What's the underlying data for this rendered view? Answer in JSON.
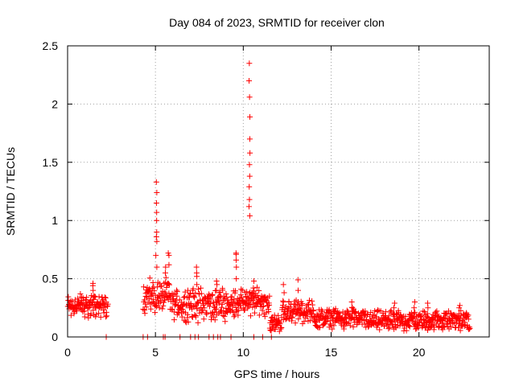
{
  "chart_data": {
    "type": "scatter",
    "title": "Day 084 of 2023, SRMTID for receiver clon",
    "xlabel": "GPS time / hours",
    "ylabel": "SRMTID / TECUs",
    "xlim": [
      0,
      24
    ],
    "ylim": [
      0,
      2.5
    ],
    "xticks": [
      0,
      5,
      10,
      15,
      20
    ],
    "xtick_labels": [
      "0",
      "5",
      "10",
      "15",
      "20"
    ],
    "yticks": [
      0,
      0.5,
      1,
      1.5,
      2,
      2.5
    ],
    "ytick_labels": [
      "0",
      "0.5",
      "1",
      "1.5",
      "2",
      "2.5"
    ],
    "grid": true,
    "marker": "+",
    "marker_color": "#ff0000",
    "series": [
      {
        "name": "SRMTID",
        "segments": [
          {
            "x_start": 0.0,
            "x_end": 2.3,
            "y_base": 0.27,
            "y_spread": 0.09
          },
          {
            "x_start": 4.3,
            "x_end": 5.9,
            "y_base": 0.35,
            "y_spread": 0.12
          },
          {
            "x_start": 5.9,
            "x_end": 9.4,
            "y_base": 0.28,
            "y_spread": 0.12
          },
          {
            "x_start": 9.4,
            "x_end": 11.5,
            "y_base": 0.3,
            "y_spread": 0.1
          },
          {
            "x_start": 11.5,
            "x_end": 12.2,
            "y_base": 0.12,
            "y_spread": 0.06
          },
          {
            "x_start": 12.2,
            "x_end": 14.0,
            "y_base": 0.22,
            "y_spread": 0.08
          },
          {
            "x_start": 14.0,
            "x_end": 17.0,
            "y_base": 0.16,
            "y_spread": 0.07
          },
          {
            "x_start": 17.0,
            "x_end": 22.9,
            "y_base": 0.14,
            "y_spread": 0.07
          }
        ],
        "spikes": [
          {
            "x": 1.45,
            "y": [
              0.35,
              0.4,
              0.44,
              0.46
            ]
          },
          {
            "x": 5.05,
            "y": [
              0.6,
              0.7,
              0.82,
              0.86,
              0.9,
              1.0,
              1.07,
              1.15,
              1.24,
              1.33
            ]
          },
          {
            "x": 5.55,
            "y": [
              0.55,
              0.6
            ]
          },
          {
            "x": 5.75,
            "y": [
              0.62,
              0.7,
              0.72
            ]
          },
          {
            "x": 7.35,
            "y": [
              0.45,
              0.52,
              0.55,
              0.6
            ]
          },
          {
            "x": 8.5,
            "y": [
              0.4,
              0.45,
              0.48
            ]
          },
          {
            "x": 9.6,
            "y": [
              0.5,
              0.6,
              0.66,
              0.71,
              0.72
            ]
          },
          {
            "x": 10.35,
            "y": [
              1.04,
              1.12,
              1.18,
              1.29,
              1.38,
              1.48,
              1.58,
              1.7,
              1.89,
              2.06,
              2.2,
              2.35
            ]
          },
          {
            "x": 10.6,
            "y": [
              0.35,
              0.42,
              0.48
            ]
          },
          {
            "x": 12.3,
            "y": [
              0.3,
              0.38,
              0.45
            ]
          },
          {
            "x": 13.1,
            "y": [
              0.3,
              0.4,
              0.49
            ]
          },
          {
            "x": 16.2,
            "y": [
              0.2,
              0.25,
              0.3
            ]
          },
          {
            "x": 18.6,
            "y": [
              0.2,
              0.25,
              0.29
            ]
          },
          {
            "x": 19.75,
            "y": [
              0.2,
              0.25,
              0.3
            ]
          },
          {
            "x": 20.5,
            "y": [
              0.2,
              0.25,
              0.29
            ]
          },
          {
            "x": 22.3,
            "y": [
              0.2,
              0.25,
              0.27
            ]
          }
        ],
        "zeros": [
          2.2,
          4.3,
          4.55,
          5.45,
          5.55,
          6.4,
          7.0,
          7.25,
          7.45,
          8.05,
          8.3,
          8.55,
          8.7,
          9.3,
          10.6,
          11.1,
          11.6
        ]
      }
    ]
  }
}
